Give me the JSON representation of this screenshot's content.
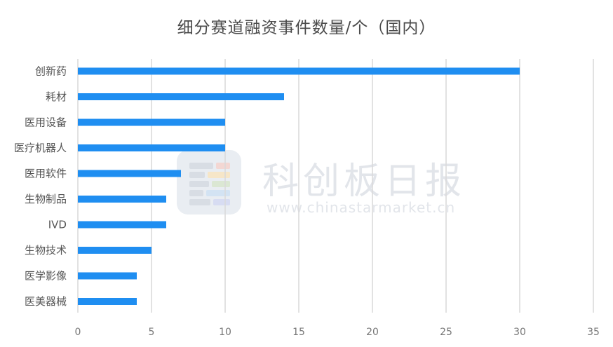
{
  "chart_data": {
    "type": "bar",
    "orientation": "horizontal",
    "title": "细分赛道融资事件数量/个（国内）",
    "categories": [
      "创新药",
      "耗材",
      "医用设备",
      "医疗机器人",
      "医用软件",
      "生物制品",
      "IVD",
      "生物技术",
      "医学影像",
      "医美器械"
    ],
    "values": [
      30,
      14,
      10,
      10,
      7,
      6,
      6,
      5,
      4,
      4
    ],
    "xlim": [
      0,
      35
    ],
    "xticks": [
      0,
      5,
      10,
      15,
      20,
      25,
      30,
      35
    ],
    "grid": "vertical",
    "bar_color": "#1f8ef1"
  },
  "watermark": {
    "name": "科创板日报",
    "url": "www.chinastarmarket.cn"
  }
}
